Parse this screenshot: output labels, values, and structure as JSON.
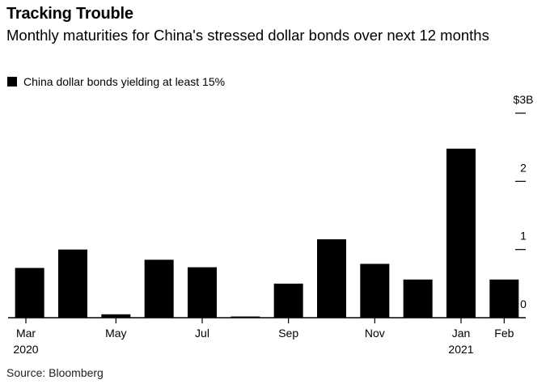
{
  "title": "Tracking Trouble",
  "subtitle": "Monthly maturities for China's stressed dollar bonds over next 12 months",
  "source": "Source: Bloomberg",
  "chart_data": {
    "type": "bar",
    "categories": [
      "Mar 2020",
      "Apr 2020",
      "May 2020",
      "Jun 2020",
      "Jul 2020",
      "Aug 2020",
      "Sep 2020",
      "Oct 2020",
      "Nov 2020",
      "Dec 2020",
      "Jan 2021",
      "Feb 2021"
    ],
    "series": [
      {
        "name": "China dollar bonds yielding at least 15%",
        "values": [
          0.73,
          1.0,
          0.05,
          0.85,
          0.74,
          0.01,
          0.5,
          1.15,
          0.79,
          0.56,
          2.48,
          0.56
        ],
        "color": "#000000"
      }
    ],
    "x_tick_labels": [
      {
        "index": 0,
        "label": "Mar",
        "sublabel": "2020"
      },
      {
        "index": 2,
        "label": "May",
        "sublabel": ""
      },
      {
        "index": 4,
        "label": "Jul",
        "sublabel": ""
      },
      {
        "index": 6,
        "label": "Sep",
        "sublabel": ""
      },
      {
        "index": 8,
        "label": "Nov",
        "sublabel": ""
      },
      {
        "index": 10,
        "label": "Jan",
        "sublabel": "2021"
      },
      {
        "index": 11,
        "label": "Feb",
        "sublabel": ""
      }
    ],
    "y_ticks": [
      {
        "value": 0,
        "label": "0"
      },
      {
        "value": 1,
        "label": "1"
      },
      {
        "value": 2,
        "label": "2"
      },
      {
        "value": 3,
        "label": "$3B"
      }
    ],
    "ylim": [
      0,
      3
    ],
    "y_axis_position": "right",
    "grid": false,
    "legend_position": "top-left"
  }
}
